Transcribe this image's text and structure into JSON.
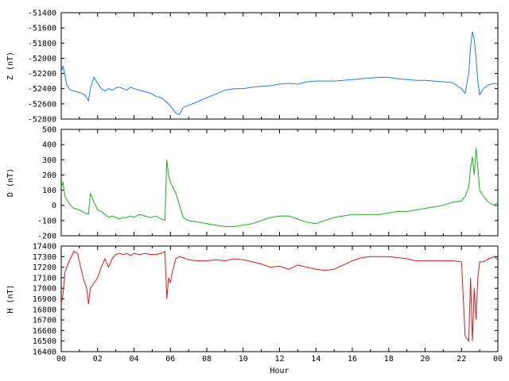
{
  "chart_data": [
    {
      "type": "line",
      "ylabel": "Z (nT)",
      "ylim": [
        -52800,
        -51400
      ],
      "yticks": [
        -51400,
        -51600,
        -51800,
        -52000,
        -52200,
        -52400,
        -52600,
        -52800
      ],
      "color": "#1e7fe0",
      "x": [
        0,
        0.1,
        0.2,
        0.3,
        0.5,
        0.7,
        1.0,
        1.3,
        1.5,
        1.6,
        1.8,
        2.0,
        2.2,
        2.4,
        2.6,
        2.8,
        3.0,
        3.2,
        3.4,
        3.6,
        3.8,
        4.0,
        4.3,
        4.6,
        4.9,
        5.2,
        5.5,
        5.7,
        5.9,
        6.1,
        6.3,
        6.5,
        6.7,
        7.0,
        7.5,
        8.0,
        8.5,
        9.0,
        9.5,
        10.0,
        10.5,
        11.0,
        11.5,
        12.0,
        12.5,
        13.0,
        13.5,
        14.0,
        14.5,
        15.0,
        15.5,
        16.0,
        16.5,
        17.0,
        17.5,
        18.0,
        18.5,
        19.0,
        19.5,
        20.0,
        20.5,
        21.0,
        21.5,
        22.0,
        22.2,
        22.4,
        22.5,
        22.6,
        22.7,
        22.8,
        22.9,
        23.0,
        23.2,
        23.5,
        23.8,
        24.0
      ],
      "y": [
        -52180,
        -52100,
        -52220,
        -52350,
        -52420,
        -52430,
        -52450,
        -52480,
        -52560,
        -52400,
        -52250,
        -52330,
        -52400,
        -52430,
        -52400,
        -52420,
        -52390,
        -52380,
        -52400,
        -52420,
        -52380,
        -52400,
        -52420,
        -52440,
        -52460,
        -52500,
        -52520,
        -52560,
        -52600,
        -52660,
        -52720,
        -52740,
        -52650,
        -52620,
        -52570,
        -52520,
        -52470,
        -52420,
        -52400,
        -52400,
        -52380,
        -52370,
        -52360,
        -52340,
        -52330,
        -52340,
        -52310,
        -52300,
        -52300,
        -52300,
        -52290,
        -52280,
        -52270,
        -52260,
        -52250,
        -52250,
        -52270,
        -52280,
        -52290,
        -52290,
        -52300,
        -52310,
        -52320,
        -52400,
        -52460,
        -52200,
        -51850,
        -51650,
        -51750,
        -52000,
        -52300,
        -52480,
        -52400,
        -52350,
        -52330,
        -52340
      ]
    },
    {
      "type": "line",
      "ylabel": "D (nT)",
      "ylim": [
        -200,
        500
      ],
      "yticks": [
        500,
        400,
        300,
        200,
        100,
        0,
        -100,
        -200
      ],
      "color": "#18b418",
      "x": [
        0,
        0.1,
        0.2,
        0.3,
        0.5,
        0.7,
        1.0,
        1.3,
        1.5,
        1.6,
        1.8,
        2.0,
        2.2,
        2.4,
        2.6,
        2.8,
        3.0,
        3.2,
        3.4,
        3.6,
        3.8,
        4.0,
        4.3,
        4.6,
        4.9,
        5.2,
        5.5,
        5.7,
        5.8,
        5.9,
        6.0,
        6.1,
        6.3,
        6.5,
        6.7,
        7.0,
        7.5,
        8.0,
        8.5,
        9.0,
        9.5,
        10.0,
        10.5,
        11.0,
        11.5,
        12.0,
        12.5,
        13.0,
        13.5,
        14.0,
        14.5,
        15.0,
        15.5,
        16.0,
        16.5,
        17.0,
        17.5,
        18.0,
        18.5,
        19.0,
        19.5,
        20.0,
        20.5,
        21.0,
        21.5,
        22.0,
        22.2,
        22.4,
        22.5,
        22.6,
        22.7,
        22.8,
        22.9,
        23.0,
        23.2,
        23.5,
        23.8,
        24.0
      ],
      "y": [
        120,
        150,
        60,
        40,
        0,
        -20,
        -30,
        -50,
        -60,
        80,
        20,
        -30,
        -40,
        -60,
        -80,
        -70,
        -80,
        -90,
        -80,
        -80,
        -70,
        -80,
        -60,
        -70,
        -80,
        -70,
        -90,
        -100,
        300,
        200,
        150,
        130,
        80,
        0,
        -80,
        -100,
        -110,
        -120,
        -130,
        -140,
        -140,
        -130,
        -120,
        -100,
        -80,
        -70,
        -70,
        -90,
        -110,
        -120,
        -100,
        -80,
        -70,
        -60,
        -60,
        -60,
        -60,
        -50,
        -40,
        -40,
        -30,
        -20,
        -10,
        0,
        20,
        30,
        60,
        120,
        250,
        320,
        200,
        380,
        250,
        100,
        60,
        20,
        0,
        20
      ]
    },
    {
      "type": "line",
      "ylabel": "H (nT)",
      "xlabel": "Hour",
      "ylim": [
        16400,
        17400
      ],
      "yticks": [
        17400,
        17300,
        17200,
        17100,
        17000,
        16900,
        16800,
        16700,
        16600,
        16500,
        16400
      ],
      "xticks": [
        "00",
        "02",
        "04",
        "06",
        "08",
        "10",
        "12",
        "14",
        "16",
        "18",
        "20",
        "22",
        "00"
      ],
      "color": "#e01818",
      "x": [
        0,
        0.1,
        0.2,
        0.3,
        0.5,
        0.7,
        0.9,
        1.0,
        1.2,
        1.4,
        1.5,
        1.6,
        1.8,
        2.0,
        2.2,
        2.4,
        2.6,
        2.8,
        3.0,
        3.2,
        3.4,
        3.6,
        3.8,
        4.0,
        4.3,
        4.6,
        4.9,
        5.2,
        5.5,
        5.7,
        5.8,
        5.9,
        6.0,
        6.1,
        6.3,
        6.5,
        6.7,
        7.0,
        7.5,
        8.0,
        8.5,
        9.0,
        9.5,
        10.0,
        10.5,
        11.0,
        11.5,
        12.0,
        12.5,
        13.0,
        13.5,
        14.0,
        14.5,
        15.0,
        15.5,
        16.0,
        16.5,
        17.0,
        17.5,
        18.0,
        18.5,
        19.0,
        19.5,
        20.0,
        20.5,
        21.0,
        21.5,
        22.0,
        22.2,
        22.4,
        22.5,
        22.6,
        22.7,
        22.8,
        22.9,
        23.0,
        23.2,
        23.5,
        23.8,
        24.0
      ],
      "y": [
        16850,
        16950,
        17150,
        17200,
        17280,
        17350,
        17330,
        17250,
        17100,
        17000,
        16850,
        17000,
        17050,
        17100,
        17200,
        17280,
        17200,
        17280,
        17320,
        17330,
        17320,
        17330,
        17310,
        17330,
        17320,
        17330,
        17320,
        17320,
        17330,
        17350,
        16900,
        17100,
        17050,
        17150,
        17280,
        17300,
        17290,
        17270,
        17260,
        17260,
        17270,
        17260,
        17280,
        17270,
        17250,
        17230,
        17200,
        17210,
        17180,
        17220,
        17200,
        17180,
        17170,
        17180,
        17220,
        17260,
        17290,
        17300,
        17300,
        17300,
        17290,
        17280,
        17260,
        17260,
        17260,
        17260,
        17260,
        17250,
        16550,
        16500,
        17100,
        16500,
        17000,
        16700,
        17100,
        17250,
        17250,
        17280,
        17300,
        17270
      ]
    }
  ]
}
